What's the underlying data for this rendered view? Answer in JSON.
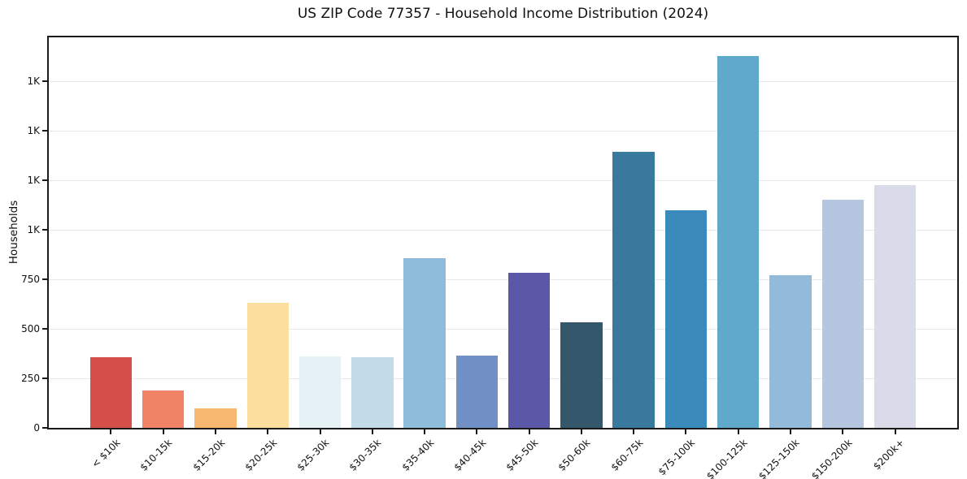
{
  "chart_data": {
    "type": "bar",
    "title": "US ZIP Code 77357 - Household Income Distribution (2024)",
    "xlabel": "",
    "ylabel": "Households",
    "categories": [
      "< $10k",
      "$10-15k",
      "$15-20k",
      "$20-25k",
      "$25-30k",
      "$30-35k",
      "$35-40k",
      "$40-45k",
      "$45-50k",
      "$50-60k",
      "$60-75k",
      "$75-100k",
      "$100-125k",
      "$125-150k",
      "$150-200k",
      "$200k+"
    ],
    "values": [
      358,
      190,
      97,
      632,
      360,
      357,
      858,
      365,
      782,
      534,
      1392,
      1099,
      1877,
      770,
      1154,
      1224
    ],
    "bar_colors": [
      "#d5504b",
      "#f08365",
      "#f8b871",
      "#fcdf9e",
      "#e5f1f5",
      "#c2dde9",
      "#90bcdb",
      "#7191c6",
      "#5b58a8",
      "#35576b",
      "#38799d",
      "#3a8abc",
      "#61a8cd",
      "#93bad8",
      "#b5c7e0",
      "#d9dbe9"
    ],
    "ylim": [
      0,
      1972
    ],
    "yticks": [
      {
        "value": 0,
        "label": "0"
      },
      {
        "value": 250,
        "label": "250"
      },
      {
        "value": 500,
        "label": "500"
      },
      {
        "value": 750,
        "label": "750"
      },
      {
        "value": 1000,
        "label": "1K"
      },
      {
        "value": 1250,
        "label": "1K"
      },
      {
        "value": 1500,
        "label": "1K"
      },
      {
        "value": 1750,
        "label": "1K"
      }
    ],
    "grid": "horizontal",
    "legend": "none",
    "axis_color": "#1a1a1a",
    "grid_color": "#e9e9e9"
  }
}
